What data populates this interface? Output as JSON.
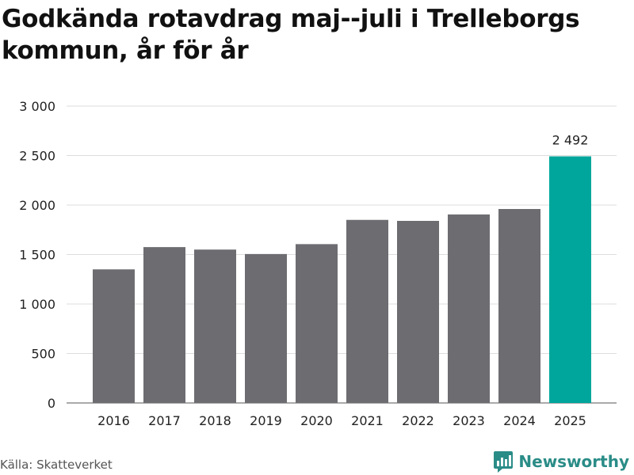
{
  "title": "Godkända rotavdrag maj--juli i Trelleborgs kommun, år för år",
  "source": "Källa: Skatteverket",
  "brand": "Newsworthy",
  "colors": {
    "bar": "#6d6c71",
    "highlight": "#00a69b",
    "grid": "#dddddd",
    "brand": "#2a8c87"
  },
  "chart_data": {
    "type": "bar",
    "categories": [
      "2016",
      "2017",
      "2018",
      "2019",
      "2020",
      "2021",
      "2022",
      "2023",
      "2024",
      "2025"
    ],
    "values": [
      1350,
      1575,
      1550,
      1505,
      1605,
      1850,
      1840,
      1905,
      1960,
      2492
    ],
    "yticks": [
      0,
      500,
      1000,
      1500,
      2000,
      2500,
      3000
    ],
    "ytick_labels": [
      "0",
      "500",
      "1 000",
      "1 500",
      "2 000",
      "2 500",
      "3 000"
    ],
    "ylim": [
      0,
      3000
    ],
    "highlight_index": 9,
    "data_labels": [
      {
        "index": 9,
        "text": "2 492"
      }
    ],
    "grid": true,
    "xlabel": "",
    "ylabel": ""
  }
}
